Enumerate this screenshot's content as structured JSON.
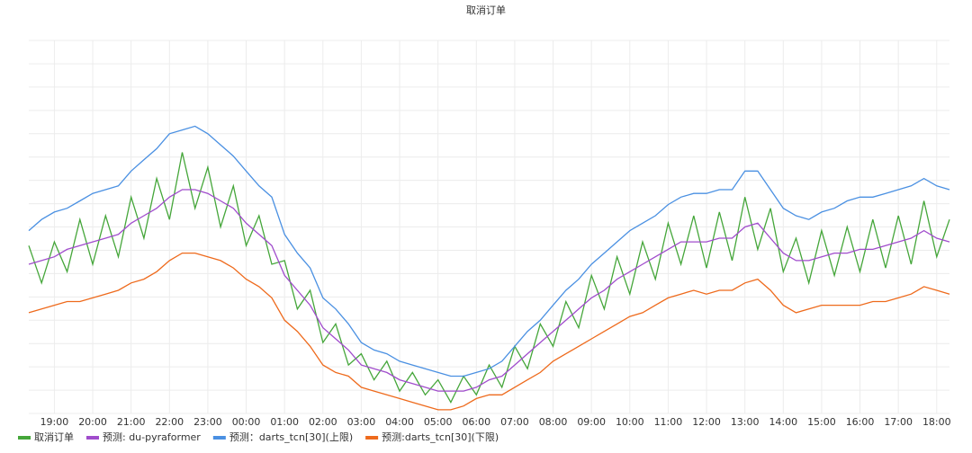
{
  "chart_data": {
    "type": "line",
    "title": "取消订单",
    "x": [
      "18:20",
      "18:40",
      "19:00",
      "19:20",
      "19:40",
      "20:00",
      "20:20",
      "20:40",
      "21:00",
      "21:20",
      "21:40",
      "22:00",
      "22:20",
      "22:40",
      "23:00",
      "23:20",
      "23:40",
      "00:00",
      "00:20",
      "00:40",
      "01:00",
      "01:20",
      "01:40",
      "02:00",
      "02:20",
      "02:40",
      "03:00",
      "03:20",
      "03:40",
      "04:00",
      "04:20",
      "04:40",
      "05:00",
      "05:20",
      "05:40",
      "06:00",
      "06:20",
      "06:40",
      "07:00",
      "07:20",
      "07:40",
      "08:00",
      "08:20",
      "08:40",
      "09:00",
      "09:20",
      "09:40",
      "10:00",
      "10:20",
      "10:40",
      "11:00",
      "11:20",
      "11:40",
      "12:00",
      "12:20",
      "12:40",
      "13:00",
      "13:20",
      "13:40",
      "14:00",
      "14:20",
      "14:40",
      "15:00",
      "15:20",
      "15:40",
      "16:00",
      "16:20",
      "16:40",
      "17:00",
      "17:20",
      "17:40",
      "18:00",
      "18:20"
    ],
    "xticks": [
      "19:00",
      "20:00",
      "21:00",
      "22:00",
      "23:00",
      "00:00",
      "01:00",
      "02:00",
      "03:00",
      "04:00",
      "05:00",
      "06:00",
      "07:00",
      "08:00",
      "09:00",
      "10:00",
      "11:00",
      "12:00",
      "13:00",
      "14:00",
      "15:00",
      "16:00",
      "17:00",
      "18:00"
    ],
    "ylim": [
      0,
      100
    ],
    "grid": true,
    "legend": "bottom",
    "series": [
      {
        "name": "取消订单",
        "color": "#45a63a",
        "values": [
          45,
          35,
          46,
          38,
          52,
          40,
          53,
          42,
          58,
          47,
          63,
          52,
          70,
          55,
          66,
          50,
          61,
          45,
          53,
          40,
          41,
          28,
          33,
          19,
          24,
          13,
          16,
          9,
          14,
          6,
          11,
          5,
          9,
          3,
          10,
          5,
          13,
          7,
          18,
          12,
          24,
          18,
          30,
          23,
          37,
          28,
          42,
          32,
          46,
          36,
          51,
          40,
          53,
          39,
          54,
          41,
          58,
          44,
          55,
          38,
          47,
          35,
          49,
          37,
          50,
          38,
          52,
          39,
          53,
          40,
          57,
          42,
          52
        ]
      },
      {
        "name": "预测: du-pyraformer",
        "color": "#a04ccc",
        "values": [
          40,
          41,
          42,
          44,
          45,
          46,
          47,
          48,
          51,
          53,
          55,
          58,
          60,
          60,
          59,
          57,
          55,
          51,
          48,
          45,
          37,
          33,
          29,
          23,
          20,
          17,
          13,
          12,
          11,
          9,
          8,
          7,
          6,
          6,
          6,
          7,
          9,
          10,
          13,
          16,
          19,
          22,
          25,
          28,
          31,
          33,
          36,
          38,
          40,
          42,
          44,
          46,
          46,
          46,
          47,
          47,
          50,
          51,
          47,
          43,
          41,
          41,
          42,
          43,
          43,
          44,
          44,
          45,
          46,
          47,
          49,
          47,
          46
        ]
      },
      {
        "name": "预测：darts_tcn[30](上限)",
        "color": "#4a90e2",
        "values": [
          49,
          52,
          54,
          55,
          57,
          59,
          60,
          61,
          65,
          68,
          71,
          75,
          76,
          77,
          75,
          72,
          69,
          65,
          61,
          58,
          48,
          43,
          39,
          31,
          28,
          24,
          19,
          17,
          16,
          14,
          13,
          12,
          11,
          10,
          10,
          11,
          12,
          14,
          18,
          22,
          25,
          29,
          33,
          36,
          40,
          43,
          46,
          49,
          51,
          53,
          56,
          58,
          59,
          59,
          60,
          60,
          65,
          65,
          60,
          55,
          53,
          52,
          54,
          55,
          57,
          58,
          58,
          59,
          60,
          61,
          63,
          61,
          60
        ]
      },
      {
        "name": "预测:darts_tcn[30](下限)",
        "color": "#ee6a1c",
        "values": [
          27,
          28,
          29,
          30,
          30,
          31,
          32,
          33,
          35,
          36,
          38,
          41,
          43,
          43,
          42,
          41,
          39,
          36,
          34,
          31,
          25,
          22,
          18,
          13,
          11,
          10,
          7,
          6,
          5,
          4,
          3,
          2,
          1,
          1,
          2,
          4,
          5,
          5,
          7,
          9,
          11,
          14,
          16,
          18,
          20,
          22,
          24,
          26,
          27,
          29,
          31,
          32,
          33,
          32,
          33,
          33,
          35,
          36,
          33,
          29,
          27,
          28,
          29,
          29,
          29,
          29,
          30,
          30,
          31,
          32,
          34,
          33,
          32
        ]
      }
    ]
  }
}
